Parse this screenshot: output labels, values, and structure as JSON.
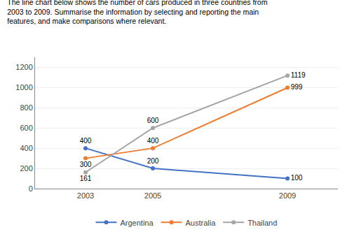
{
  "chart_data": {
    "type": "line",
    "title": "The line chart below shows the number of cars produced in three countries from 2003 to 2009. Summarise the information by selecting and reporting the main features, and make comparisons where relevant.",
    "x": [
      2003,
      2005,
      2009
    ],
    "series": [
      {
        "name": "Argentina",
        "color": "#4472C4",
        "values": [
          400,
          200,
          100
        ]
      },
      {
        "name": "Australia",
        "color": "#ED7D31",
        "values": [
          300,
          400,
          999
        ]
      },
      {
        "name": "Thailand",
        "color": "#A5A5A5",
        "values": [
          161,
          600,
          1119
        ]
      }
    ],
    "xlim": [
      2001.5,
      2010.5
    ],
    "xticks": [
      2003,
      2005,
      2009
    ],
    "ylim": [
      0,
      1300
    ],
    "yticks": [
      0,
      200,
      400,
      600,
      800,
      1000,
      1200
    ],
    "grid": "y",
    "legend": "bottom",
    "marker": "circle",
    "data_labels": true
  }
}
